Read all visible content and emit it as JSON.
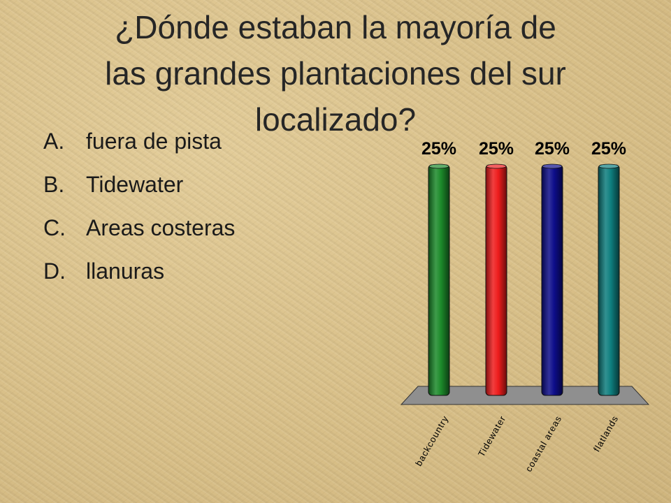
{
  "slide": {
    "title_lines": [
      "¿Dónde estaban la mayoría de",
      "las grandes plantaciones del sur",
      "localizado?"
    ],
    "options": [
      {
        "letter": "A.",
        "text": "fuera de pista"
      },
      {
        "letter": "B.",
        "text": "Tidewater"
      },
      {
        "letter": "C.",
        "text": "Areas costeras"
      },
      {
        "letter": "D.",
        "text": "llanuras"
      }
    ]
  },
  "chart_data": {
    "type": "bar",
    "categories": [
      "backcountry",
      "Tidewater",
      "coastal areas",
      "flatlands"
    ],
    "values": [
      25,
      25,
      25,
      25
    ],
    "data_labels": [
      "25%",
      "25%",
      "25%",
      "25%"
    ],
    "colors": [
      "#1c8a2a",
      "#ee1c1c",
      "#0d0d8a",
      "#0e7e7e"
    ],
    "floor_color": "#8f8f8f",
    "ylim": [
      0,
      25
    ],
    "grid": false,
    "title": "",
    "xlabel": "",
    "ylabel": ""
  }
}
